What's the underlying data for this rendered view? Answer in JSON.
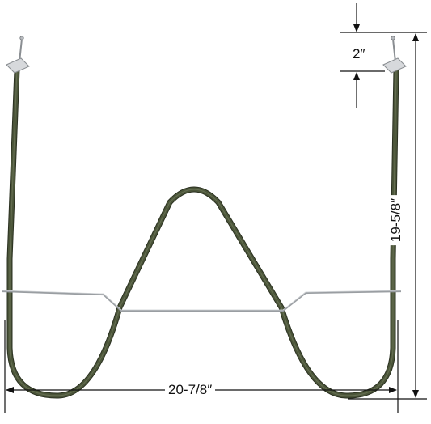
{
  "dimensions": {
    "width_label": "20-7/8″",
    "height_label": "19-5/8″",
    "top_gap_label": "2″"
  },
  "colors": {
    "element_tube": "#3d4530",
    "element_tube_highlight": "#6a7358",
    "brace": "#a0a4a8",
    "bracket": "#c9ccd0",
    "dimension_line": "#111111",
    "background": "#ffffff"
  },
  "icons": {
    "left_terminal": "terminal-bracket-icon",
    "right_terminal": "terminal-bracket-icon"
  }
}
